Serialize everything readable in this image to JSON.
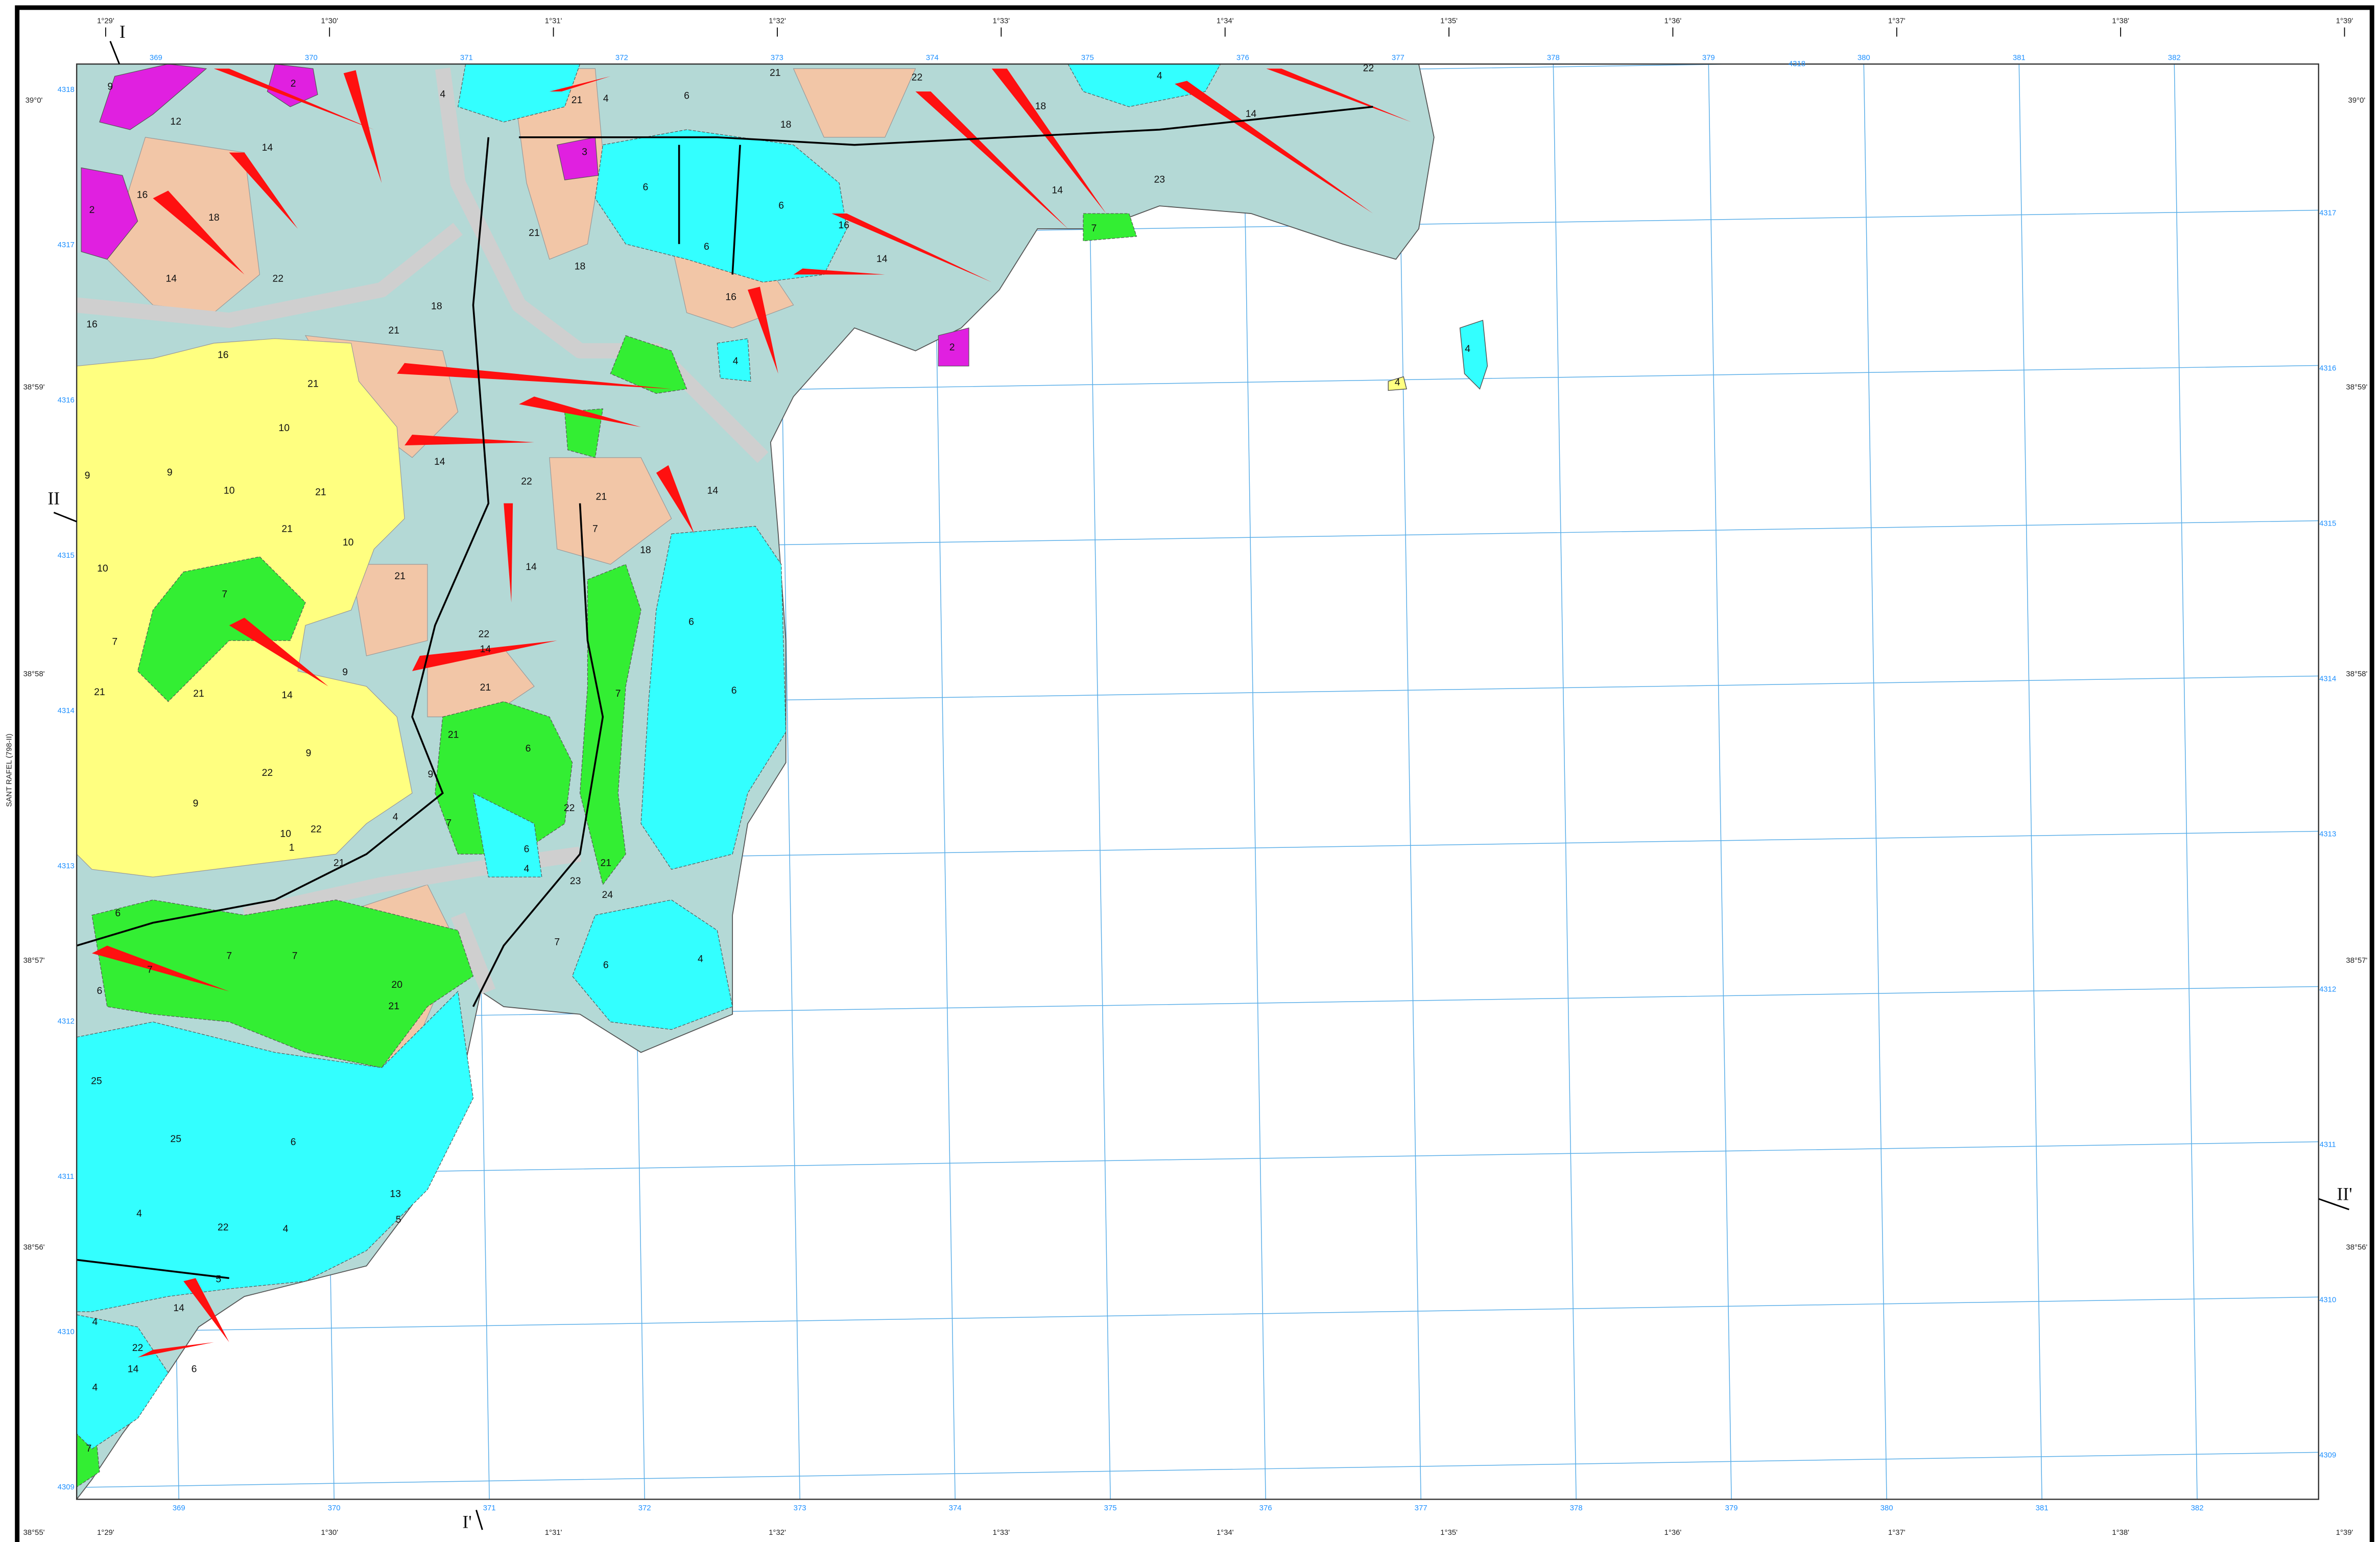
{
  "frame": {
    "side_label": "SANT RAFEL (798-II)"
  },
  "longitude_labels": {
    "top": [
      "1°29'",
      "1°30'",
      "1°31'",
      "1°32'",
      "1°33'",
      "1°34'",
      "1°35'",
      "1°36'",
      "1°37'",
      "1°38'",
      "1°39'"
    ],
    "bottom": [
      "1°29'",
      "1°30'",
      "1°31'",
      "1°32'",
      "1°33'",
      "1°34'",
      "1°35'",
      "1°36'",
      "1°37'",
      "1°38'",
      "1°39'"
    ]
  },
  "latitude_labels": {
    "left": [
      "39°0'",
      "38°59'",
      "38°58'",
      "38°57'",
      "38°56'",
      "38°55'"
    ],
    "right": [
      "39°0'",
      "38°59'",
      "38°58'",
      "38°57'",
      "38°56'"
    ]
  },
  "utm_easting": {
    "top": [
      "369",
      "370",
      "371",
      "372",
      "373",
      "374",
      "375",
      "376",
      "377",
      "378",
      "379",
      "380",
      "381",
      "382"
    ],
    "bottom": [
      "369",
      "370",
      "371",
      "372",
      "373",
      "374",
      "375",
      "376",
      "377",
      "378",
      "379",
      "380",
      "381",
      "382"
    ]
  },
  "utm_northing": {
    "left": [
      "4318",
      "4317",
      "4316",
      "4315",
      "4314",
      "4313",
      "4312",
      "4311",
      "4310",
      "4309"
    ],
    "right": [
      "4318",
      "4317",
      "4316",
      "4315",
      "4314",
      "4313",
      "4312",
      "4311",
      "4310",
      "4309"
    ]
  },
  "section_labels": [
    "I",
    "I'",
    "II",
    "II'"
  ],
  "map_units": [
    "9",
    "2",
    "4",
    "4",
    "6",
    "21",
    "22",
    "22",
    "4",
    "12",
    "14",
    "18",
    "14",
    "18",
    "21",
    "3",
    "6",
    "6",
    "16",
    "18",
    "22",
    "14",
    "16",
    "2",
    "14",
    "16",
    "6",
    "16",
    "21",
    "18",
    "21",
    "18",
    "14",
    "23",
    "7",
    "2",
    "4",
    "4",
    "4",
    "16",
    "21",
    "10",
    "9",
    "9",
    "10",
    "21",
    "10",
    "21",
    "10",
    "7",
    "21",
    "14",
    "22",
    "14",
    "21",
    "14",
    "18",
    "7",
    "7",
    "14",
    "9",
    "21",
    "21",
    "22",
    "14",
    "6",
    "6",
    "21",
    "7",
    "6",
    "21",
    "9",
    "22",
    "9",
    "10",
    "9",
    "4",
    "22",
    "1",
    "21",
    "7",
    "6",
    "4",
    "22",
    "23",
    "21",
    "24",
    "7",
    "6",
    "4",
    "6",
    "7",
    "6",
    "7",
    "7",
    "20",
    "21",
    "6",
    "4",
    "4",
    "22",
    "25",
    "25",
    "13",
    "5",
    "5",
    "14",
    "22",
    "14",
    "6",
    "4",
    "4",
    "7"
  ]
}
